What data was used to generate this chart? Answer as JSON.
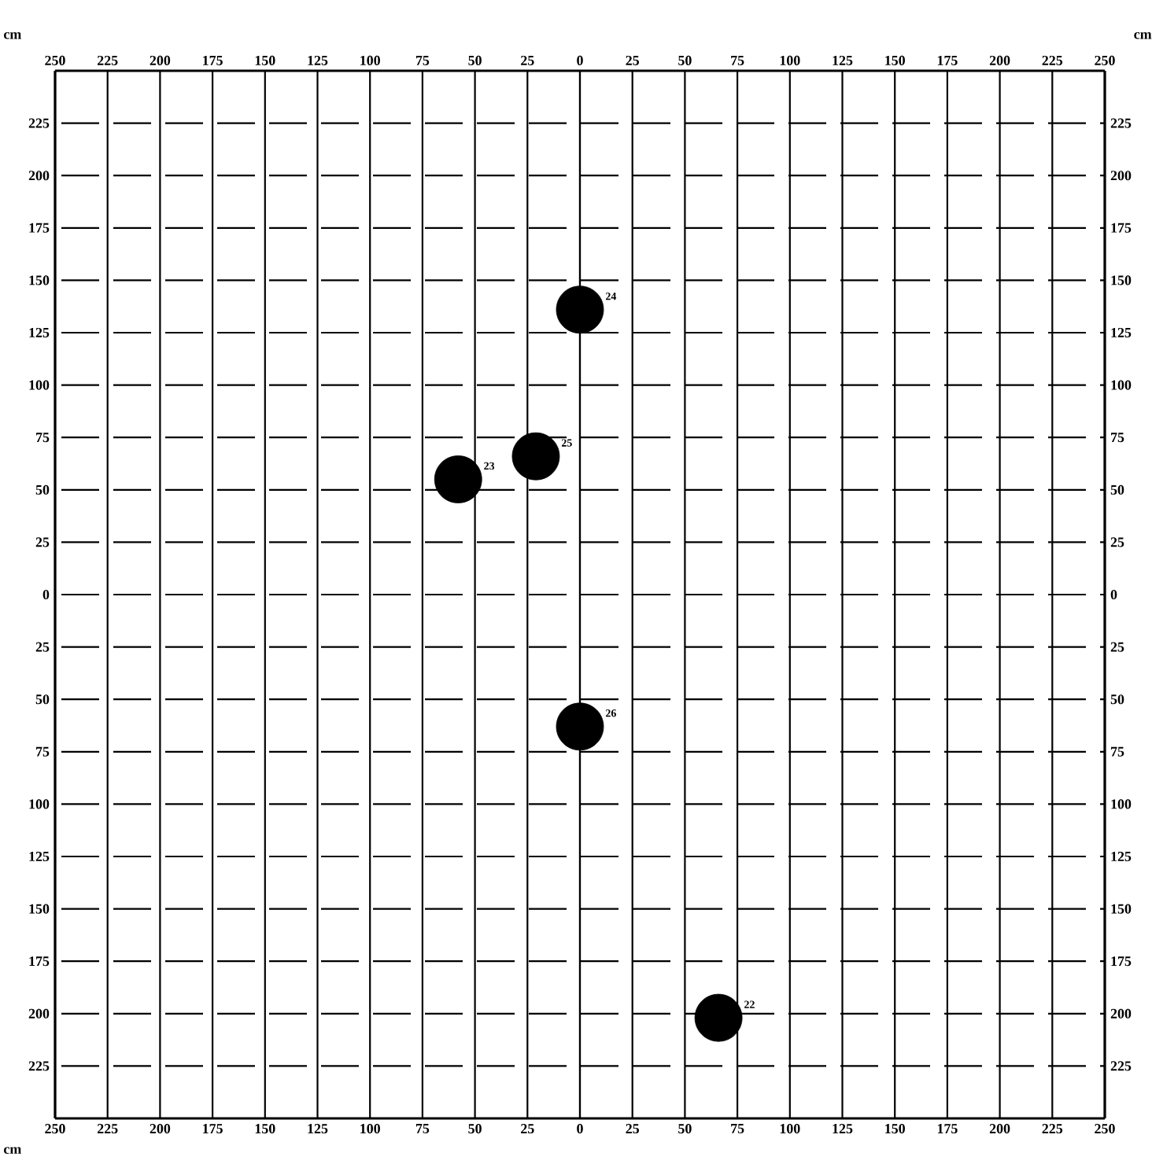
{
  "chart_data": {
    "type": "scatter",
    "xlabel": "cm",
    "ylabel": "cm",
    "y2label": "cm",
    "series": [
      {
        "color": "#000000",
        "x": [
          0,
          -21,
          -58,
          0,
          66
        ],
        "values": [
          136,
          66,
          55,
          -63,
          -202
        ]
      }
    ],
    "marker": "circle",
    "grid": true,
    "xlim": [
      -250,
      250
    ],
    "ylim": [
      -250,
      250
    ],
    "x2lim": [
      -250,
      250
    ],
    "y2lim": [
      -250,
      250
    ],
    "xticks": [
      {
        "value": -250,
        "label": "250"
      },
      {
        "value": -225,
        "label": "225"
      },
      {
        "value": -200,
        "label": "200"
      },
      {
        "value": -175,
        "label": "175"
      },
      {
        "value": -150,
        "label": "150"
      },
      {
        "value": -125,
        "label": "125"
      },
      {
        "value": -100,
        "label": "100"
      },
      {
        "value": -75,
        "label": "75"
      },
      {
        "value": -50,
        "label": "50"
      },
      {
        "value": -25,
        "label": "25"
      },
      0,
      25,
      50,
      75,
      100,
      125,
      150,
      175,
      200,
      225,
      250
    ],
    "x2ticks": [
      {
        "value": -250,
        "label": "250"
      },
      {
        "value": -225,
        "label": "225"
      },
      {
        "value": -200,
        "label": "200"
      },
      {
        "value": -175,
        "label": "175"
      },
      {
        "value": -150,
        "label": "150"
      },
      {
        "value": -125,
        "label": "125"
      },
      {
        "value": -100,
        "label": "100"
      },
      {
        "value": -75,
        "label": "75"
      },
      {
        "value": -50,
        "label": "50"
      },
      {
        "value": -25,
        "label": "25"
      },
      0,
      25,
      50,
      75,
      100,
      125,
      150,
      175,
      200,
      225,
      250
    ],
    "yticks": [
      {
        "value": -225,
        "label": "225"
      },
      {
        "value": -200,
        "label": "200"
      },
      {
        "value": -175,
        "label": "175"
      },
      {
        "value": -150,
        "label": "150"
      },
      {
        "value": -125,
        "label": "125"
      },
      {
        "value": -100,
        "label": "100"
      },
      {
        "value": -75,
        "label": "75"
      },
      {
        "value": -50,
        "label": "50"
      },
      {
        "value": -25,
        "label": "25"
      },
      0,
      25,
      50,
      75,
      100,
      125,
      150,
      175,
      200,
      225
    ],
    "y2ticks": [
      {
        "value": -225,
        "label": "225"
      },
      {
        "value": -200,
        "label": "200"
      },
      {
        "value": -175,
        "label": "175"
      },
      {
        "value": -150,
        "label": "150"
      },
      {
        "value": -125,
        "label": "125"
      },
      {
        "value": -100,
        "label": "100"
      },
      {
        "value": -75,
        "label": "75"
      },
      {
        "value": -50,
        "label": "50"
      },
      {
        "value": -25,
        "label": "25"
      },
      0,
      25,
      50,
      75,
      100,
      125,
      150,
      175,
      200,
      225
    ],
    "annotations": [
      {
        "text": "24",
        "x": 0,
        "y": 136
      },
      {
        "text": "25",
        "x": -21,
        "y": 66
      },
      {
        "text": "23",
        "x": -58,
        "y": 55
      },
      {
        "text": "26",
        "x": 0,
        "y": -63
      },
      {
        "text": "22",
        "x": 66,
        "y": -202
      }
    ]
  }
}
